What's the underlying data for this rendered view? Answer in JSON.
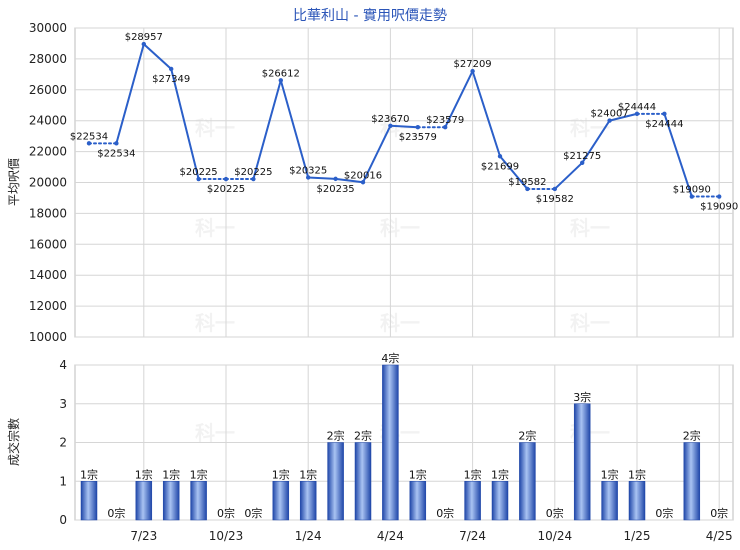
{
  "chart_data": [
    {
      "type": "line",
      "title": "比華利山 - 實用呎價走勢",
      "ylabel": "平均呎價",
      "ylim": [
        10000,
        30000
      ],
      "yticks": [
        10000,
        12000,
        14000,
        16000,
        18000,
        20000,
        22000,
        24000,
        26000,
        28000,
        30000
      ],
      "x_index": [
        0,
        1,
        2,
        3,
        4,
        5,
        6,
        7,
        8,
        9,
        10,
        11,
        12,
        13,
        14,
        15,
        16,
        17,
        18,
        19,
        20,
        21,
        22,
        23
      ],
      "values": [
        22534,
        22534,
        28957,
        27349,
        20225,
        20225,
        20225,
        26612,
        20325,
        20235,
        20016,
        23670,
        23579,
        23579,
        27209,
        21699,
        19582,
        19582,
        21275,
        24007,
        24444,
        24444,
        19090,
        19090
      ],
      "labels": [
        "$22534",
        "$22534",
        "$28957",
        "$27349",
        "$20225",
        "$20225",
        "$20225",
        "$26612",
        "$20325",
        "$20235",
        "$20016",
        "$23670",
        "$23579",
        "$23579",
        "$27209",
        "$21699",
        "$19582",
        "$19582",
        "$21275",
        "$24007",
        "$24444",
        "$24444",
        "$19090",
        "$19090"
      ],
      "interpolated_after": [
        0,
        4,
        5,
        12,
        16,
        20,
        22
      ],
      "grid": true,
      "color": "#2b5fc9"
    },
    {
      "type": "bar",
      "ylabel": "成交宗數",
      "ylim": [
        0,
        4
      ],
      "yticks": [
        0,
        1,
        2,
        3,
        4
      ],
      "values": [
        1,
        0,
        1,
        1,
        1,
        0,
        0,
        1,
        1,
        2,
        2,
        4,
        1,
        0,
        1,
        1,
        2,
        0,
        3,
        1,
        1,
        0,
        2,
        0
      ],
      "labels": [
        "1宗",
        "0宗",
        "1宗",
        "1宗",
        "1宗",
        "0宗",
        "0宗",
        "1宗",
        "1宗",
        "2宗",
        "2宗",
        "4宗",
        "1宗",
        "0宗",
        "1宗",
        "1宗",
        "2宗",
        "0宗",
        "3宗",
        "1宗",
        "1宗",
        "0宗",
        "2宗",
        "0宗"
      ],
      "x_tick_labels": [
        {
          "index": 2,
          "text": "7/23"
        },
        {
          "index": 5,
          "text": "10/23"
        },
        {
          "index": 8,
          "text": "1/24"
        },
        {
          "index": 11,
          "text": "4/24"
        },
        {
          "index": 14,
          "text": "7/24"
        },
        {
          "index": 17,
          "text": "10/24"
        },
        {
          "index": 20,
          "text": "1/25"
        },
        {
          "index": 23,
          "text": "4/25"
        }
      ],
      "grid": true,
      "color": "#2b5fc9"
    }
  ],
  "watermark": "科一"
}
